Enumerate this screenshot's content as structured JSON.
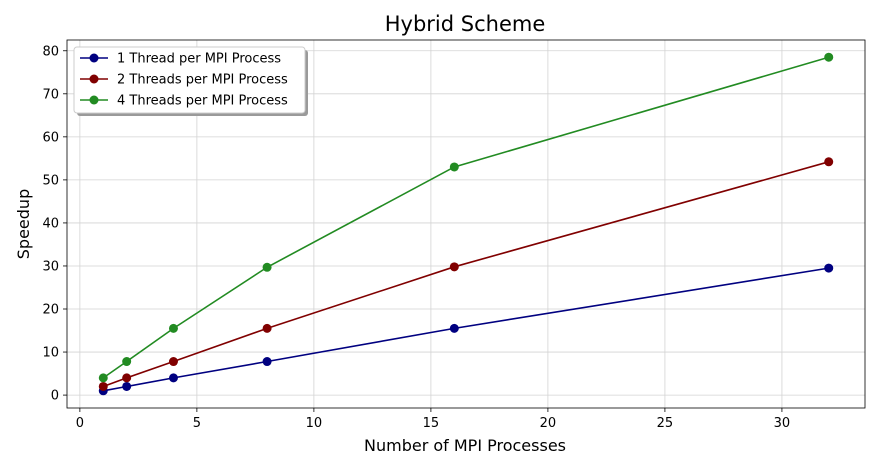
{
  "chart_data": {
    "type": "line",
    "title": "Hybrid Scheme",
    "xlabel": "Number of MPI Processes",
    "ylabel": "Speedup",
    "xlim": [
      -0.55,
      33.55
    ],
    "ylim": [
      -3,
      82.5
    ],
    "xticks": [
      0,
      5,
      10,
      15,
      20,
      25,
      30
    ],
    "yticks": [
      0,
      10,
      20,
      30,
      40,
      50,
      60,
      70,
      80
    ],
    "grid": true,
    "legend_position": "top-left",
    "x": [
      1,
      2,
      4,
      8,
      16,
      32
    ],
    "series": [
      {
        "name": "1 Thread per MPI Process",
        "color": "#000080",
        "values": [
          1,
          2,
          4,
          7.8,
          15.5,
          29.5
        ]
      },
      {
        "name": "2 Threads per MPI Process",
        "color": "#800000",
        "values": [
          2,
          4,
          7.8,
          15.5,
          29.8,
          54.2
        ]
      },
      {
        "name": "4 Threads per MPI Process",
        "color": "#228B22",
        "values": [
          4,
          7.8,
          15.5,
          29.7,
          53,
          78.5
        ]
      }
    ]
  }
}
